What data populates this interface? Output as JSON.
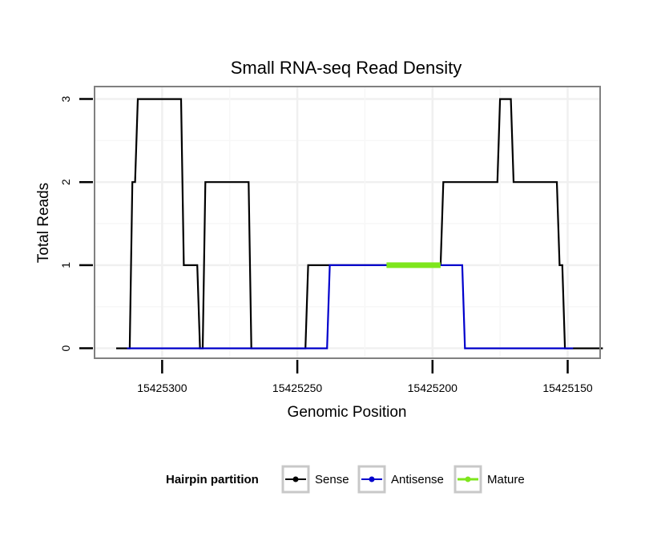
{
  "chart_data": {
    "type": "line",
    "title": "Small RNA-seq Read Density",
    "xlabel": "Genomic Position",
    "ylabel": "Total Reads",
    "x_reversed": true,
    "xlim": [
      15425325,
      15425138
    ],
    "ylim": [
      -0.12,
      3.15
    ],
    "x_ticks": [
      15425300,
      15425250,
      15425200,
      15425150
    ],
    "x_tick_labels": [
      "15425300",
      "15425250",
      "15425200",
      "15425150"
    ],
    "y_ticks": [
      0,
      1,
      2,
      3
    ],
    "y_tick_labels": [
      "0",
      "1",
      "2",
      "3"
    ],
    "grid": true,
    "legend": {
      "title": "Hairpin partition",
      "position": "bottom",
      "entries": [
        "Sense",
        "Antisense",
        "Mature"
      ]
    },
    "series": [
      {
        "name": "Sense",
        "color": "#000000",
        "x": [
          15425317,
          15425312,
          15425311,
          15425310,
          15425309,
          15425293,
          15425292,
          15425287,
          15425286,
          15425285,
          15425284,
          15425268,
          15425267,
          15425247,
          15425246,
          15425197,
          15425196,
          15425176,
          15425175,
          15425174,
          15425173,
          15425171,
          15425170,
          15425166,
          15425165,
          15425154,
          15425153,
          15425152,
          15425151,
          15425148,
          15425147,
          15425137
        ],
        "values": [
          0,
          0,
          2,
          2,
          3,
          3,
          1,
          1,
          0,
          0,
          2,
          2,
          0,
          0,
          1,
          1,
          2,
          2,
          3,
          3,
          3,
          3,
          2,
          2,
          2,
          2,
          1,
          1,
          0,
          0,
          0,
          0
        ]
      },
      {
        "name": "Antisense",
        "color": "#0000cc",
        "x": [
          15425313,
          15425253,
          15425252,
          15425239,
          15425238,
          15425218,
          15425217,
          15425189,
          15425188,
          15425148
        ],
        "values": [
          0,
          0,
          0,
          0,
          1,
          1,
          1,
          1,
          0,
          0
        ]
      },
      {
        "name": "Mature",
        "color": "#7ee61c",
        "x": [
          15425217,
          15425197
        ],
        "values": [
          1,
          1
        ]
      }
    ]
  }
}
